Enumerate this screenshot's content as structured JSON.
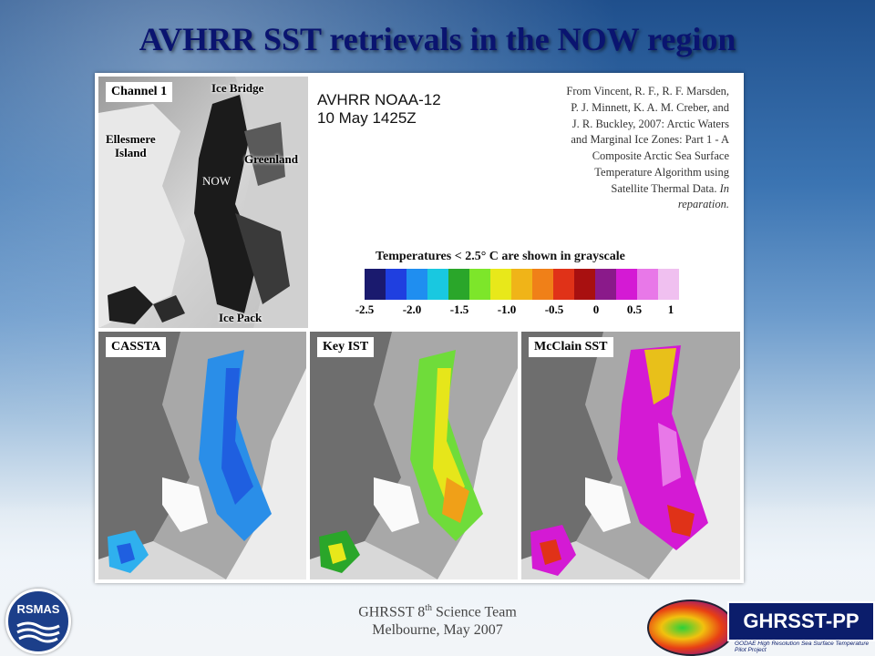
{
  "slide": {
    "title": "AVHRR SST retrievals in the NOW region",
    "footer_line1_prefix": "GHRSST 8",
    "footer_line1_sup": "th",
    "footer_line1_suffix": " Science Team",
    "footer_line2": "Melbourne, May 2007"
  },
  "figure": {
    "satellite_line1": "AVHRR NOAA-12",
    "satellite_line2": "10 May 1425Z",
    "citation_line1": "From Vincent, R. F., R. F. Marsden,",
    "citation_line2": "P. J. Minnett, K. A. M. Creber, and",
    "citation_line3": "J. R. Buckley, 2007: Arctic Waters",
    "citation_line4": "and Marginal Ice Zones: Part 1 - A",
    "citation_line5": "Composite Arctic Sea Surface",
    "citation_line6": "Temperature Algorithm using",
    "citation_line7_normal": "Satellite Thermal Data. ",
    "citation_line7_italic": "In",
    "citation_line8": "reparation.",
    "colorbar_title": "Temperatures < 2.5° C are shown in grayscale",
    "colorbar_colors": [
      "#1a1a6e",
      "#1f3fe0",
      "#1f8ef0",
      "#19c8e0",
      "#2aa62a",
      "#7de62a",
      "#e8e81a",
      "#f0b418",
      "#f08018",
      "#e03218",
      "#a81010",
      "#8a1a8a",
      "#d41ad4",
      "#e878e8",
      "#f0c0f0"
    ],
    "colorbar_ticks": [
      "-2.5",
      "-2.0",
      "-1.5",
      "-1.0",
      "-0.5",
      "0",
      "0.5",
      "1"
    ],
    "panels": {
      "channel1": "Channel 1",
      "cassta": "CASSTA",
      "keyist": "Key IST",
      "mcclain": "McClain SST"
    },
    "map_labels": {
      "ice_bridge": "Ice Bridge",
      "ellesmere_line1": "Ellesmere",
      "ellesmere_line2": "Island",
      "greenland": "Greenland",
      "now": "NOW",
      "ice_pack": "Ice Pack"
    }
  },
  "logos": {
    "rsmas": "RSMAS",
    "ghrsst": "GHRSST-PP",
    "ghrsst_sub": "GODAE High Resolution Sea Surface Temperature Pilot Project"
  }
}
